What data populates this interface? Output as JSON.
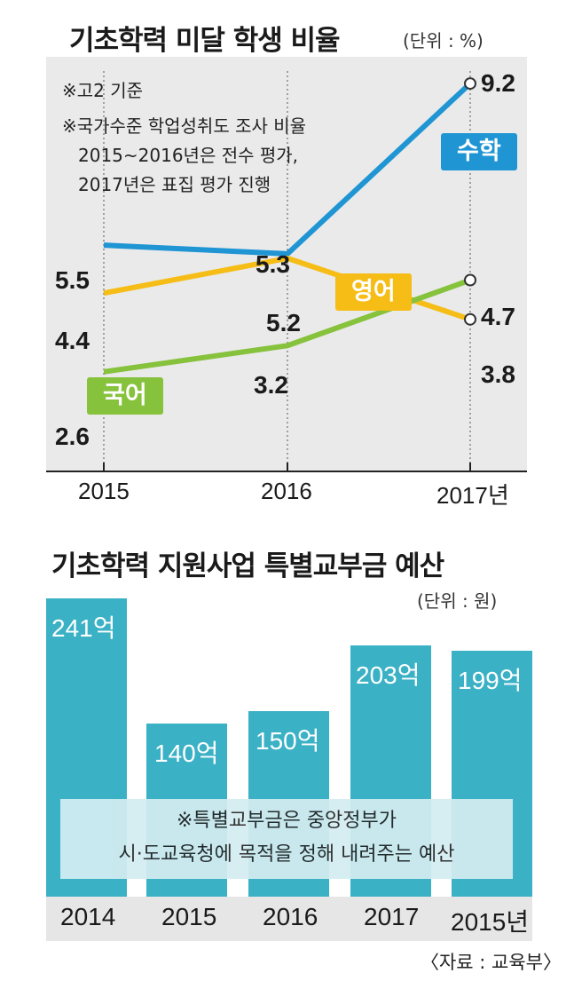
{
  "chart_data": [
    {
      "type": "line",
      "title": "기초학력 미달 학생 비율",
      "unit": "(단위 : %)",
      "notes": [
        "※고2 기준",
        "※국가수준 학업성취도 조사 비율",
        "2015~2016년은 전수 평가,",
        "2017년은 표집 평가 진행"
      ],
      "categories": [
        "2015",
        "2016",
        "2017년"
      ],
      "ylim": [
        0,
        10
      ],
      "series": [
        {
          "name": "수학",
          "color": "#1f95d4",
          "values": [
            5.5,
            5.3,
            9.2
          ],
          "labels": [
            "5.5",
            "5.3",
            "9.2"
          ]
        },
        {
          "name": "영어",
          "color": "#f5bd16",
          "values": [
            4.4,
            5.2,
            3.8
          ],
          "labels": [
            "4.4",
            "5.2",
            "3.8"
          ]
        },
        {
          "name": "국어",
          "color": "#86c23c",
          "values": [
            2.6,
            3.2,
            4.7
          ],
          "labels": [
            "2.6",
            "3.2",
            "4.7"
          ]
        }
      ]
    },
    {
      "type": "bar",
      "title": "기초학력 지원사업 특별교부금 예산",
      "unit": "(단위 : 원)",
      "categories": [
        "2014",
        "2015",
        "2016",
        "2017",
        "2015년"
      ],
      "values": [
        241,
        140,
        150,
        203,
        199
      ],
      "value_labels": [
        "241억",
        "140억",
        "150억",
        "203억",
        "199억"
      ],
      "note": [
        "※특별교부금은 중앙정부가",
        "시·도교육청에 목적을 정해 내려주는 예산"
      ],
      "color": "#3bb1c6"
    }
  ],
  "source": "〈자료 : 교육부〉"
}
